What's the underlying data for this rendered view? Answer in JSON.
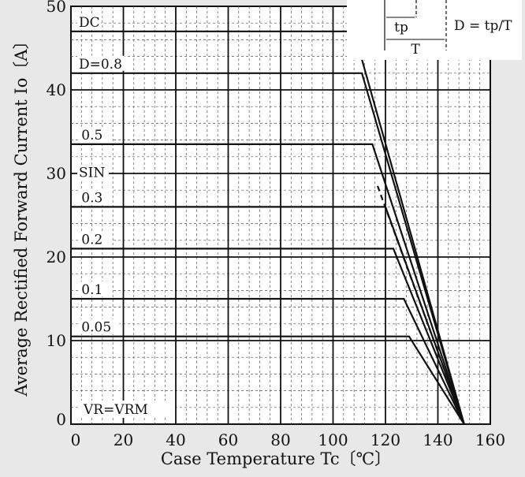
{
  "chart_data": {
    "type": "line",
    "xlabel": "Case Temperature  Tc〔℃〕",
    "ylabel": "Average Rectified Forward Current  Io〔A〕",
    "xlim": [
      0,
      160
    ],
    "ylim": [
      0,
      50
    ],
    "xticks": [
      "0",
      "20",
      "40",
      "60",
      "80",
      "100",
      "120",
      "140",
      "160"
    ],
    "yticks": [
      "0",
      "10",
      "20",
      "30",
      "40",
      "50"
    ],
    "grid": "major and minor (dashed)",
    "condition_label": "VR=VRM",
    "inset": {
      "tp_label": "tp",
      "T_label": "T",
      "formula": "D = tp/T"
    },
    "series": [
      {
        "name": "DC",
        "dashed": false,
        "x": [
          0,
          108,
          150
        ],
        "y": [
          47,
          47,
          0
        ]
      },
      {
        "name": "D=0.8",
        "dashed": false,
        "x": [
          0,
          111,
          150
        ],
        "y": [
          42,
          42,
          0
        ]
      },
      {
        "name": "0.5",
        "dashed": false,
        "x": [
          0,
          115,
          150
        ],
        "y": [
          33.5,
          33.5,
          0
        ]
      },
      {
        "name": "SIN",
        "dashed": true,
        "x": [
          117,
          150
        ],
        "y": [
          28.5,
          0
        ]
      },
      {
        "name": "0.3",
        "dashed": false,
        "x": [
          0,
          120,
          150
        ],
        "y": [
          26,
          26,
          0
        ]
      },
      {
        "name": "0.2",
        "dashed": false,
        "x": [
          0,
          123,
          150
        ],
        "y": [
          21,
          21,
          0
        ]
      },
      {
        "name": "0.1",
        "dashed": false,
        "x": [
          0,
          127,
          150
        ],
        "y": [
          15,
          15,
          0
        ]
      },
      {
        "name": "0.05",
        "dashed": false,
        "x": [
          0,
          129,
          150
        ],
        "y": [
          10.5,
          10.5,
          0
        ]
      }
    ]
  }
}
